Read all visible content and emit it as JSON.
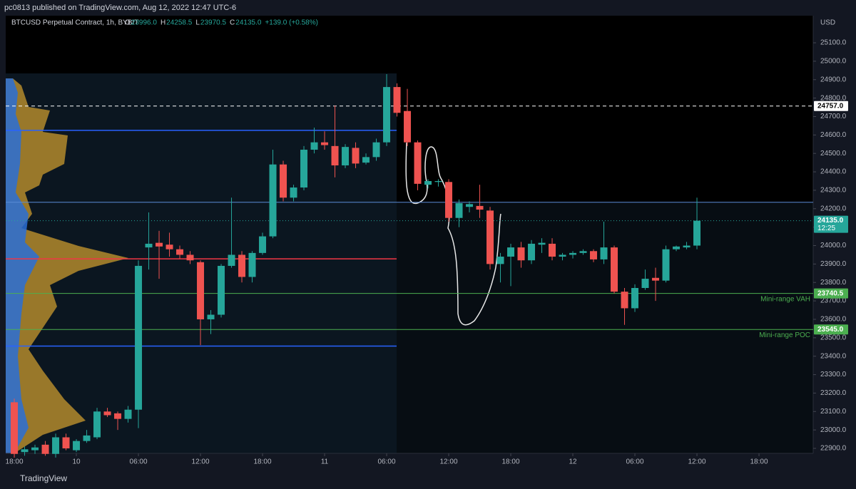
{
  "header": {
    "publisher": "pc0813 published on TradingView.com, Aug 12, 2022 12:47 UTC-6",
    "symbol": "BTCUSD Perpetual Contract, 1h, BYBIT",
    "ohlc": [
      {
        "key": "O",
        "text": "23996.0"
      },
      {
        "key": "H",
        "text": "24258.5"
      },
      {
        "key": "L",
        "text": "23970.5"
      },
      {
        "key": "C",
        "text": "24135.0"
      }
    ],
    "change": "+139.0 (+0.58%)"
  },
  "footer": {
    "brand": "TradingView"
  },
  "chart_data": {
    "type": "candlestick",
    "currency": "USD",
    "up_color": "#26a69a",
    "down_color": "#ef5350",
    "open": [
      23150,
      22880,
      22890,
      22920,
      22870,
      22960,
      22890,
      22940,
      22960,
      23100,
      23090,
      23060,
      23110,
      23990,
      24015,
      24005,
      23980,
      23950,
      23910,
      23600,
      23625,
      23890,
      23950,
      23830,
      23960,
      24050,
      24440,
      24260,
      24315,
      24520,
      24560,
      24540,
      24435,
      24530,
      24450,
      24480,
      24560,
      24860,
      24730,
      24560,
      24330,
      24345,
      24345,
      24150,
      24210,
      24215,
      24190,
      23900,
      23940,
      23990,
      23920,
      24005,
      24010,
      23940,
      23950,
      23960,
      23970,
      23925,
      23990,
      23750,
      23660,
      23770,
      23825,
      23810,
      23980,
      23990,
      24000
    ],
    "high": [
      23170,
      22910,
      22920,
      22940,
      22980,
      22980,
      22950,
      23000,
      23120,
      23120,
      23100,
      23130,
      23920,
      24180,
      24080,
      24070,
      24000,
      23970,
      23920,
      23650,
      23900,
      24260,
      23970,
      23970,
      24070,
      24520,
      24460,
      24330,
      24540,
      24640,
      24620,
      24760,
      24550,
      24560,
      24500,
      24580,
      24930,
      24880,
      24850,
      24570,
      24360,
      24360,
      24360,
      24250,
      24240,
      24330,
      24210,
      23960,
      24010,
      24020,
      24030,
      24040,
      24040,
      23960,
      23970,
      23980,
      23980,
      24130,
      24000,
      23770,
      23790,
      23870,
      23880,
      24000,
      24000,
      24020,
      24260
    ],
    "low": [
      22850,
      22860,
      22870,
      22860,
      22850,
      22890,
      22880,
      22930,
      22950,
      23070,
      23000,
      23040,
      23010,
      23870,
      23820,
      23940,
      23930,
      23900,
      23460,
      23520,
      23610,
      23880,
      23800,
      23800,
      23950,
      24040,
      24240,
      24240,
      24300,
      24500,
      24520,
      24370,
      24420,
      24420,
      24440,
      24460,
      24540,
      24700,
      24540,
      24300,
      24310,
      24320,
      24130,
      24100,
      24180,
      24150,
      23870,
      23800,
      23780,
      23880,
      23900,
      23960,
      23920,
      23920,
      23930,
      23950,
      23910,
      23900,
      23740,
      23570,
      23640,
      23760,
      23700,
      23800,
      23970,
      23980,
      23980
    ],
    "close": [
      22870,
      22895,
      22905,
      22870,
      22960,
      22900,
      22940,
      22970,
      23100,
      23080,
      23060,
      23110,
      23890,
      24010,
      23995,
      23980,
      23950,
      23920,
      23600,
      23625,
      23890,
      23950,
      23830,
      23960,
      24050,
      24440,
      24260,
      24315,
      24520,
      24560,
      24545,
      24435,
      24535,
      24445,
      24480,
      24560,
      24860,
      24720,
      24560,
      24335,
      24350,
      24350,
      24150,
      24230,
      24225,
      24195,
      23900,
      23940,
      23990,
      23920,
      24010,
      24015,
      23940,
      23950,
      23960,
      23970,
      23925,
      23990,
      23750,
      23660,
      23770,
      23820,
      23810,
      23980,
      23995,
      24000,
      24135
    ],
    "ylim": [
      22873,
      25247
    ],
    "yticks": [
      {
        "value": 22900,
        "label": "22900.0"
      },
      {
        "value": 23000,
        "label": "23000.0"
      },
      {
        "value": 23100,
        "label": "23100.0"
      },
      {
        "value": 23200,
        "label": "23200.0"
      },
      {
        "value": 23300,
        "label": "23300.0"
      },
      {
        "value": 23400,
        "label": "23400.0"
      },
      {
        "value": 23500,
        "label": "23500.0"
      },
      {
        "value": 23600,
        "label": "23600.0"
      },
      {
        "value": 23700,
        "label": "23700.0"
      },
      {
        "value": 23800,
        "label": "23800.0"
      },
      {
        "value": 23900,
        "label": "23900.0"
      },
      {
        "value": 24000,
        "label": "24000.0"
      },
      {
        "value": 24100,
        "label": "24100.0"
      },
      {
        "value": 24200,
        "label": "24200.0"
      },
      {
        "value": 24300,
        "label": "24300.0"
      },
      {
        "value": 24400,
        "label": "24400.0"
      },
      {
        "value": 24500,
        "label": "24500.0"
      },
      {
        "value": 24600,
        "label": "24600.0"
      },
      {
        "value": 24700,
        "label": "24700.0"
      },
      {
        "value": 24800,
        "label": "24800.0"
      },
      {
        "value": 24900,
        "label": "24900.0"
      },
      {
        "value": 25000,
        "label": "25000.0"
      },
      {
        "value": 25100,
        "label": "25100.0"
      }
    ],
    "xlim": [
      -0.83,
      77.24
    ],
    "xticks": [
      {
        "value": 0,
        "label": "18:00"
      },
      {
        "value": 6,
        "label": "10"
      },
      {
        "value": 12,
        "label": "06:00"
      },
      {
        "value": 18,
        "label": "12:00"
      },
      {
        "value": 24,
        "label": "18:00"
      },
      {
        "value": 30,
        "label": "11"
      },
      {
        "value": 36,
        "label": "06:00"
      },
      {
        "value": 42,
        "label": "12:00"
      },
      {
        "value": 48,
        "label": "18:00"
      },
      {
        "value": 54,
        "label": "12"
      },
      {
        "value": 60,
        "label": "06:00"
      },
      {
        "value": 66,
        "label": "12:00"
      },
      {
        "value": 72,
        "label": "18:00"
      }
    ],
    "profile_lines": [
      {
        "value": 24625,
        "color": "#2962ff"
      },
      {
        "value": 23928,
        "color": "#f23645"
      },
      {
        "value": 23455,
        "color": "#2962ff"
      }
    ],
    "levels": [
      {
        "value": 24757,
        "label": "24757.0",
        "color": "#ffffff",
        "style": "dashed",
        "tag_color": "#ffffff",
        "tag_text": "#000000"
      },
      {
        "value": 24235,
        "color": "#5b8bd6",
        "style": "solid"
      },
      {
        "value": 24135,
        "label": "24135.0",
        "time": "12:25",
        "color": "#26a69a",
        "style": "dotted",
        "tag_color": "#26a69a",
        "tag_text": "#ffffff"
      },
      {
        "value": 23740.5,
        "label": "23740.5",
        "name": "Mini-range VAH",
        "color": "#4caf50",
        "style": "solid",
        "tag_color": "#4caf50",
        "tag_text": "#ffffff"
      },
      {
        "value": 23545,
        "label": "23545.0",
        "name": "Mini-range POC",
        "color": "#4caf50",
        "style": "solid",
        "tag_color": "#4caf50",
        "tag_text": "#ffffff"
      }
    ]
  }
}
